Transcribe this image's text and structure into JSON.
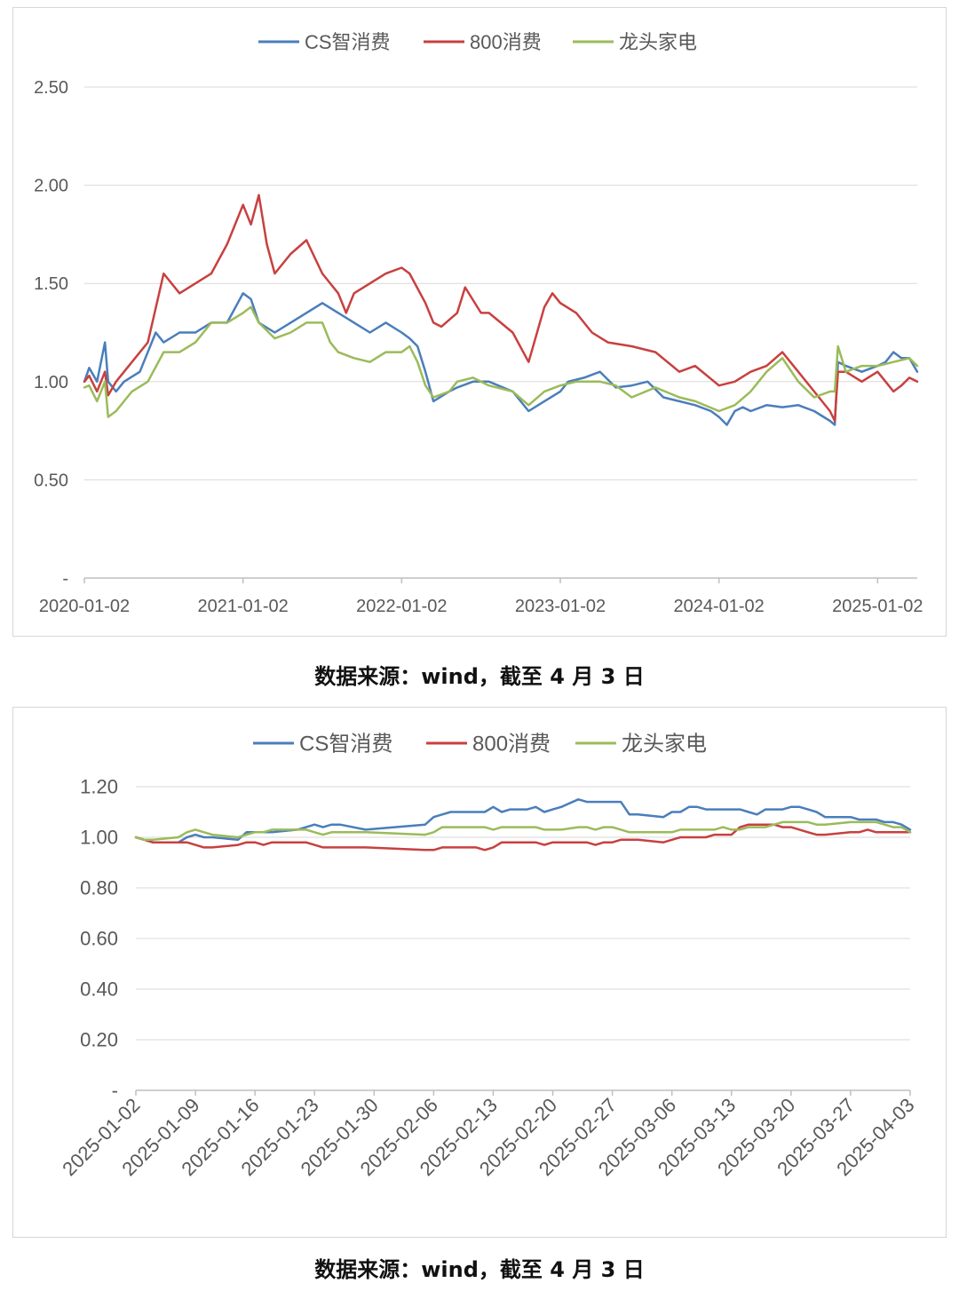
{
  "colors": {
    "series": [
      "#4a7ebb",
      "#c8403f",
      "#9bbb59"
    ],
    "grid": "#d9d9d9",
    "axis": "#bfbfbf",
    "text": "#595959"
  },
  "captions": [
    "数据来源：wind，截至 4 月 3 日",
    "数据来源：wind，截至 4 月 3 日"
  ],
  "chart_data": [
    {
      "type": "line",
      "title": "",
      "xlabel": "",
      "ylabel": "",
      "ylim": [
        0,
        2.5
      ],
      "yticks": [
        "-",
        "0.50",
        "1.00",
        "1.50",
        "2.00",
        "2.50"
      ],
      "ytick_values": [
        0,
        0.5,
        1.0,
        1.5,
        2.0,
        2.5
      ],
      "xticks": [
        "2020-01-02",
        "2021-01-02",
        "2022-01-02",
        "2023-01-02",
        "2024-01-02",
        "2025-01-02"
      ],
      "xtick_values": [
        2020.0,
        2021.0,
        2022.0,
        2023.0,
        2024.0,
        2025.0
      ],
      "xlim": [
        2020.0,
        2025.25
      ],
      "grid": true,
      "legend": "top-center",
      "series": [
        {
          "name": "CS智消费",
          "x": [
            2020.0,
            2020.03,
            2020.08,
            2020.13,
            2020.15,
            2020.2,
            2020.25,
            2020.35,
            2020.45,
            2020.5,
            2020.6,
            2020.7,
            2020.8,
            2020.9,
            2021.0,
            2021.05,
            2021.1,
            2021.2,
            2021.3,
            2021.4,
            2021.5,
            2021.6,
            2021.7,
            2021.8,
            2021.9,
            2022.0,
            2022.05,
            2022.1,
            2022.15,
            2022.2,
            2022.3,
            2022.35,
            2022.45,
            2022.55,
            2022.7,
            2022.8,
            2022.9,
            2023.0,
            2023.05,
            2023.15,
            2023.25,
            2023.35,
            2023.45,
            2023.55,
            2023.65,
            2023.75,
            2023.85,
            2023.95,
            2024.0,
            2024.05,
            2024.1,
            2024.15,
            2024.2,
            2024.3,
            2024.4,
            2024.5,
            2024.6,
            2024.7,
            2024.73,
            2024.75,
            2024.8,
            2024.9,
            2025.0,
            2025.05,
            2025.1,
            2025.15,
            2025.2,
            2025.25
          ],
          "y": [
            1.0,
            1.07,
            1.0,
            1.2,
            1.0,
            0.95,
            1.0,
            1.05,
            1.25,
            1.2,
            1.25,
            1.25,
            1.3,
            1.3,
            1.45,
            1.42,
            1.3,
            1.25,
            1.3,
            1.35,
            1.4,
            1.35,
            1.3,
            1.25,
            1.3,
            1.25,
            1.22,
            1.18,
            1.05,
            0.9,
            0.95,
            0.97,
            1.0,
            1.0,
            0.95,
            0.85,
            0.9,
            0.95,
            1.0,
            1.02,
            1.05,
            0.97,
            0.98,
            1.0,
            0.92,
            0.9,
            0.88,
            0.85,
            0.82,
            0.78,
            0.85,
            0.87,
            0.85,
            0.88,
            0.87,
            0.88,
            0.85,
            0.8,
            0.78,
            1.1,
            1.08,
            1.05,
            1.08,
            1.1,
            1.15,
            1.12,
            1.12,
            1.05
          ]
        },
        {
          "name": "800消费",
          "x": [
            2020.0,
            2020.03,
            2020.08,
            2020.13,
            2020.15,
            2020.2,
            2020.3,
            2020.4,
            2020.5,
            2020.6,
            2020.7,
            2020.8,
            2020.9,
            2021.0,
            2021.05,
            2021.1,
            2021.15,
            2021.2,
            2021.3,
            2021.4,
            2021.5,
            2021.6,
            2021.65,
            2021.7,
            2021.8,
            2021.9,
            2022.0,
            2022.05,
            2022.15,
            2022.2,
            2022.25,
            2022.35,
            2022.4,
            2022.5,
            2022.55,
            2022.7,
            2022.8,
            2022.9,
            2022.95,
            2023.0,
            2023.1,
            2023.2,
            2023.3,
            2023.45,
            2023.6,
            2023.75,
            2023.85,
            2024.0,
            2024.1,
            2024.2,
            2024.3,
            2024.4,
            2024.5,
            2024.6,
            2024.7,
            2024.73,
            2024.75,
            2024.8,
            2024.9,
            2025.0,
            2025.05,
            2025.1,
            2025.15,
            2025.2,
            2025.25
          ],
          "y": [
            1.0,
            1.03,
            0.95,
            1.05,
            0.93,
            1.0,
            1.1,
            1.2,
            1.55,
            1.45,
            1.5,
            1.55,
            1.7,
            1.9,
            1.8,
            1.95,
            1.7,
            1.55,
            1.65,
            1.72,
            1.55,
            1.45,
            1.35,
            1.45,
            1.5,
            1.55,
            1.58,
            1.55,
            1.4,
            1.3,
            1.28,
            1.35,
            1.48,
            1.35,
            1.35,
            1.25,
            1.1,
            1.38,
            1.45,
            1.4,
            1.35,
            1.25,
            1.2,
            1.18,
            1.15,
            1.05,
            1.08,
            0.98,
            1.0,
            1.05,
            1.08,
            1.15,
            1.05,
            0.95,
            0.85,
            0.8,
            1.05,
            1.05,
            1.0,
            1.05,
            1.0,
            0.95,
            0.98,
            1.02,
            1.0
          ]
        },
        {
          "name": "龙头家电",
          "x": [
            2020.0,
            2020.03,
            2020.08,
            2020.13,
            2020.15,
            2020.2,
            2020.3,
            2020.4,
            2020.5,
            2020.6,
            2020.7,
            2020.8,
            2020.9,
            2021.0,
            2021.05,
            2021.1,
            2021.2,
            2021.3,
            2021.4,
            2021.5,
            2021.55,
            2021.6,
            2021.7,
            2021.8,
            2021.9,
            2022.0,
            2022.05,
            2022.1,
            2022.15,
            2022.2,
            2022.3,
            2022.35,
            2022.45,
            2022.55,
            2022.7,
            2022.8,
            2022.9,
            2023.0,
            2023.1,
            2023.25,
            2023.35,
            2023.45,
            2023.6,
            2023.75,
            2023.85,
            2024.0,
            2024.1,
            2024.2,
            2024.3,
            2024.4,
            2024.5,
            2024.6,
            2024.7,
            2024.73,
            2024.75,
            2024.8,
            2024.9,
            2025.0,
            2025.1,
            2025.2,
            2025.25
          ],
          "y": [
            0.97,
            0.98,
            0.9,
            1.0,
            0.82,
            0.85,
            0.95,
            1.0,
            1.15,
            1.15,
            1.2,
            1.3,
            1.3,
            1.35,
            1.38,
            1.3,
            1.22,
            1.25,
            1.3,
            1.3,
            1.2,
            1.15,
            1.12,
            1.1,
            1.15,
            1.15,
            1.18,
            1.1,
            0.98,
            0.92,
            0.95,
            1.0,
            1.02,
            0.98,
            0.95,
            0.88,
            0.95,
            0.98,
            1.0,
            1.0,
            0.98,
            0.92,
            0.97,
            0.92,
            0.9,
            0.85,
            0.88,
            0.95,
            1.05,
            1.12,
            1.0,
            0.92,
            0.95,
            0.95,
            1.18,
            1.05,
            1.08,
            1.08,
            1.1,
            1.12,
            1.08
          ]
        }
      ]
    },
    {
      "type": "line",
      "title": "",
      "xlabel": "",
      "ylabel": "",
      "ylim": [
        0,
        1.2
      ],
      "yticks": [
        "-",
        "0.20",
        "0.40",
        "0.60",
        "0.80",
        "1.00",
        "1.20"
      ],
      "ytick_values": [
        0,
        0.2,
        0.4,
        0.6,
        0.8,
        1.0,
        1.2
      ],
      "xticks": [
        "2025-01-02",
        "2025-01-09",
        "2025-01-16",
        "2025-01-23",
        "2025-01-30",
        "2025-02-06",
        "2025-02-13",
        "2025-02-20",
        "2025-02-27",
        "2025-03-06",
        "2025-03-13",
        "2025-03-20",
        "2025-03-27",
        "2025-04-03"
      ],
      "xtick_values": [
        0,
        7,
        14,
        21,
        28,
        35,
        42,
        49,
        56,
        63,
        70,
        77,
        84,
        91
      ],
      "xlim": [
        0,
        91
      ],
      "grid": true,
      "legend": "top-center",
      "series": [
        {
          "name": "CS智消费",
          "x": [
            0,
            1,
            2,
            5,
            6,
            7,
            8,
            9,
            12,
            13,
            14,
            15,
            16,
            19,
            20,
            21,
            22,
            23,
            24,
            27,
            34,
            35,
            36,
            37,
            40,
            41,
            42,
            43,
            44,
            46,
            47,
            48,
            49,
            50,
            52,
            53,
            54,
            55,
            56,
            57,
            58,
            59,
            62,
            63,
            64,
            65,
            66,
            67,
            68,
            69,
            70,
            71,
            72,
            73,
            74,
            75,
            76,
            77,
            78,
            79,
            80,
            81,
            84,
            85,
            86,
            87,
            88,
            89,
            90,
            91
          ],
          "y": [
            1.0,
            0.99,
            0.98,
            0.98,
            1.0,
            1.01,
            1.0,
            1.0,
            0.99,
            1.02,
            1.02,
            1.02,
            1.02,
            1.03,
            1.04,
            1.05,
            1.04,
            1.05,
            1.05,
            1.03,
            1.05,
            1.08,
            1.09,
            1.1,
            1.1,
            1.1,
            1.12,
            1.1,
            1.11,
            1.11,
            1.12,
            1.1,
            1.11,
            1.12,
            1.15,
            1.14,
            1.14,
            1.14,
            1.14,
            1.14,
            1.09,
            1.09,
            1.08,
            1.1,
            1.1,
            1.12,
            1.12,
            1.11,
            1.11,
            1.11,
            1.11,
            1.11,
            1.1,
            1.09,
            1.11,
            1.11,
            1.11,
            1.12,
            1.12,
            1.11,
            1.1,
            1.08,
            1.08,
            1.07,
            1.07,
            1.07,
            1.06,
            1.06,
            1.05,
            1.03
          ]
        },
        {
          "name": "800消费",
          "x": [
            0,
            1,
            2,
            5,
            6,
            7,
            8,
            9,
            12,
            13,
            14,
            15,
            16,
            19,
            20,
            21,
            22,
            23,
            24,
            27,
            34,
            35,
            36,
            37,
            40,
            41,
            42,
            43,
            44,
            46,
            47,
            48,
            49,
            50,
            52,
            53,
            54,
            55,
            56,
            57,
            58,
            59,
            62,
            63,
            64,
            65,
            66,
            67,
            68,
            69,
            70,
            71,
            72,
            73,
            74,
            75,
            76,
            77,
            78,
            79,
            80,
            81,
            84,
            85,
            86,
            87,
            88,
            89,
            90,
            91
          ],
          "y": [
            1.0,
            0.99,
            0.98,
            0.98,
            0.98,
            0.97,
            0.96,
            0.96,
            0.97,
            0.98,
            0.98,
            0.97,
            0.98,
            0.98,
            0.98,
            0.97,
            0.96,
            0.96,
            0.96,
            0.96,
            0.95,
            0.95,
            0.96,
            0.96,
            0.96,
            0.95,
            0.96,
            0.98,
            0.98,
            0.98,
            0.98,
            0.97,
            0.98,
            0.98,
            0.98,
            0.98,
            0.97,
            0.98,
            0.98,
            0.99,
            0.99,
            0.99,
            0.98,
            0.99,
            1.0,
            1.0,
            1.0,
            1.0,
            1.01,
            1.01,
            1.01,
            1.04,
            1.05,
            1.05,
            1.05,
            1.05,
            1.04,
            1.04,
            1.03,
            1.02,
            1.01,
            1.01,
            1.02,
            1.02,
            1.03,
            1.02,
            1.02,
            1.02,
            1.02,
            1.02
          ]
        },
        {
          "name": "龙头家电",
          "x": [
            0,
            1,
            2,
            5,
            6,
            7,
            8,
            9,
            12,
            13,
            14,
            15,
            16,
            19,
            20,
            21,
            22,
            23,
            24,
            27,
            34,
            35,
            36,
            37,
            40,
            41,
            42,
            43,
            44,
            46,
            47,
            48,
            49,
            50,
            52,
            53,
            54,
            55,
            56,
            57,
            58,
            59,
            62,
            63,
            64,
            65,
            66,
            67,
            68,
            69,
            70,
            71,
            72,
            73,
            74,
            75,
            76,
            77,
            78,
            79,
            80,
            81,
            84,
            85,
            86,
            87,
            88,
            89,
            90,
            91
          ],
          "y": [
            1.0,
            0.99,
            0.99,
            1.0,
            1.02,
            1.03,
            1.02,
            1.01,
            1.0,
            1.01,
            1.02,
            1.02,
            1.03,
            1.03,
            1.03,
            1.02,
            1.01,
            1.02,
            1.02,
            1.02,
            1.01,
            1.02,
            1.04,
            1.04,
            1.04,
            1.04,
            1.03,
            1.04,
            1.04,
            1.04,
            1.04,
            1.03,
            1.03,
            1.03,
            1.04,
            1.04,
            1.03,
            1.04,
            1.04,
            1.03,
            1.02,
            1.02,
            1.02,
            1.02,
            1.03,
            1.03,
            1.03,
            1.03,
            1.03,
            1.04,
            1.03,
            1.03,
            1.04,
            1.04,
            1.04,
            1.05,
            1.06,
            1.06,
            1.06,
            1.06,
            1.05,
            1.05,
            1.06,
            1.06,
            1.06,
            1.06,
            1.05,
            1.04,
            1.04,
            1.02
          ]
        }
      ]
    }
  ]
}
